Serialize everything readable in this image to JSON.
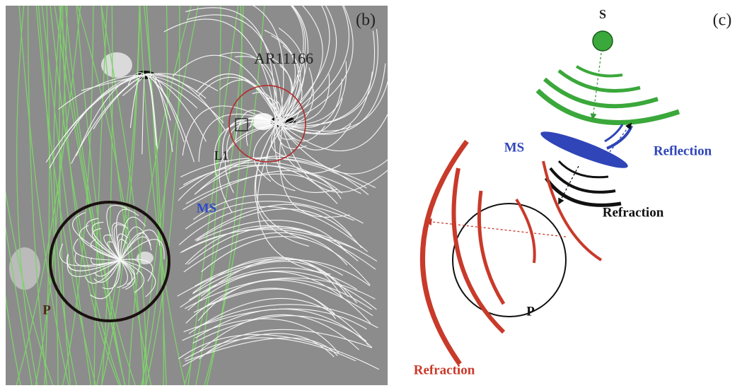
{
  "panel_b": {
    "label": "(b)",
    "active_region": "AR11166",
    "loop": "L1",
    "ms": "MS",
    "p": "P"
  },
  "panel_c": {
    "label": "(c)",
    "source": "S",
    "ms": "MS",
    "reflection": "Reflection",
    "refraction_near": "Refraction",
    "p": "P",
    "refraction_far": "Refraction"
  }
}
